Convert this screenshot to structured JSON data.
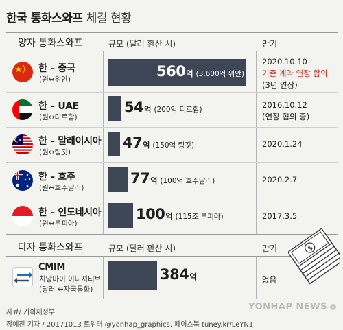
{
  "title": {
    "main": "한국 통화스와프",
    "sub": "체결 현황"
  },
  "headers": {
    "bilateral": "양자 통화스와프",
    "scale": "규모 (달러 환산 시)",
    "maturity": "만기",
    "multilateral": "다자 통화스와프",
    "scale2": "규모 (달러 환산 시)",
    "maturity2": "만기"
  },
  "accent": "#3c4654",
  "highlight": "#c3302b",
  "rows": [
    {
      "name": "한 – 중국",
      "sub": "(원↔위안)",
      "flag": "china-flag-icon",
      "unit": "억",
      "note": "(3,600억 위안)",
      "maturity_lines": [
        "2020.10.10",
        "기존 계약 연장 합의",
        "(3년 연장)"
      ]
    },
    {
      "name": "한 – UAE",
      "sub": "(원↔디르함)",
      "flag": "uae-flag-icon",
      "unit": "억",
      "note": "(200억 디르함)",
      "maturity_lines": [
        "2016.10.12",
        "(연장 협의 중)"
      ]
    },
    {
      "name": "한 – 말레이시아",
      "sub": "(원↔링깃)",
      "flag": "malaysia-flag-icon",
      "unit": "억",
      "note": "(150억 링깃)",
      "maturity_lines": [
        "2020.1.24"
      ]
    },
    {
      "name": "한 – 호주",
      "sub": "(원↔호주달러)",
      "flag": "australia-flag-icon",
      "unit": "억",
      "note": "(100억 호주달러)",
      "maturity_lines": [
        "2020.2.7"
      ]
    },
    {
      "name": "한 – 인도네시아",
      "sub": "(원↔루피아)",
      "flag": "indonesia-flag-icon",
      "unit": "억",
      "note": "(115조 루피아)",
      "maturity_lines": [
        "2017.3.5"
      ]
    }
  ],
  "cmim": {
    "name": "CMIM",
    "sub1": "치앙마이 이니셔티브",
    "sub2": "(달러 ↔자국통화)",
    "unit": "억",
    "maturity": "없음",
    "icon": "exchange-arrows-icon"
  },
  "footer": {
    "source": "자료/ 기획재정부",
    "credit": "장예진 기자 / 20171013 트위터 @yonhap_graphics, 페이스북 tuney.kr/LeYN1"
  },
  "logo": "YONHAP NEWS",
  "chart_data": {
    "type": "bar",
    "orientation": "horizontal",
    "unit": "억 달러",
    "categories": [
      "한 – 중국",
      "한 – UAE",
      "한 – 말레이시아",
      "한 – 호주",
      "한 – 인도네시아",
      "CMIM"
    ],
    "values": [
      560,
      54,
      47,
      77,
      100,
      384
    ],
    "xlim": [
      0,
      560
    ]
  }
}
